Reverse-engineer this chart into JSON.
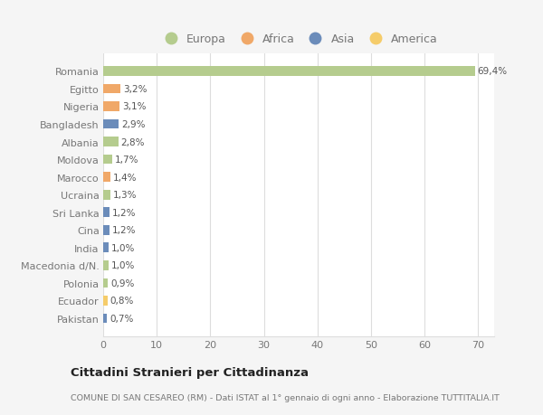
{
  "categories": [
    "Romania",
    "Egitto",
    "Nigeria",
    "Bangladesh",
    "Albania",
    "Moldova",
    "Marocco",
    "Ucraina",
    "Sri Lanka",
    "Cina",
    "India",
    "Macedonia d/N.",
    "Polonia",
    "Ecuador",
    "Pakistan"
  ],
  "values": [
    69.4,
    3.2,
    3.1,
    2.9,
    2.8,
    1.7,
    1.4,
    1.3,
    1.2,
    1.2,
    1.0,
    1.0,
    0.9,
    0.8,
    0.7
  ],
  "labels": [
    "69,4%",
    "3,2%",
    "3,1%",
    "2,9%",
    "2,8%",
    "1,7%",
    "1,4%",
    "1,3%",
    "1,2%",
    "1,2%",
    "1,0%",
    "1,0%",
    "0,9%",
    "0,8%",
    "0,7%"
  ],
  "colors": [
    "#b5cc8e",
    "#f0a868",
    "#f0a868",
    "#6b8cba",
    "#b5cc8e",
    "#b5cc8e",
    "#f0a868",
    "#b5cc8e",
    "#6b8cba",
    "#6b8cba",
    "#6b8cba",
    "#b5cc8e",
    "#b5cc8e",
    "#f5cc6a",
    "#6b8cba"
  ],
  "legend_labels": [
    "Europa",
    "Africa",
    "Asia",
    "America"
  ],
  "legend_colors": [
    "#b5cc8e",
    "#f0a868",
    "#6b8cba",
    "#f5cc6a"
  ],
  "xlim": [
    0,
    73
  ],
  "xticks": [
    0,
    10,
    20,
    30,
    40,
    50,
    60,
    70
  ],
  "title": "Cittadini Stranieri per Cittadinanza",
  "subtitle": "COMUNE DI SAN CESAREO (RM) - Dati ISTAT al 1° gennaio di ogni anno - Elaborazione TUTTITALIA.IT",
  "background_color": "#f5f5f5",
  "plot_bg_color": "#ffffff",
  "grid_color": "#dddddd",
  "bar_height": 0.55
}
